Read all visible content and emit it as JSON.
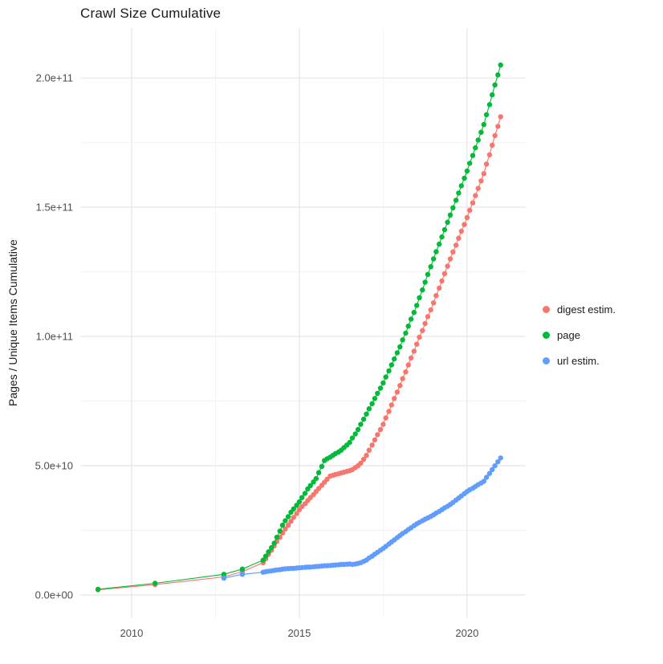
{
  "page": {
    "background": "#FFFFFF"
  },
  "chart_data": {
    "type": "line",
    "style": "line-with-points",
    "title": "Crawl Size Cumulative",
    "xlabel": "",
    "ylabel": "Pages / Unique Items Cumulative",
    "x_ticks": [
      2010,
      2015,
      2020
    ],
    "x_tick_labels": [
      "2010",
      "2015",
      "2020"
    ],
    "y_ticks": [
      0,
      50000000000.0,
      100000000000.0,
      150000000000.0,
      200000000000.0
    ],
    "y_tick_labels": [
      "0.0e+00",
      "5.0e+10",
      "1.0e+11",
      "1.5e+11",
      "2.0e+11"
    ],
    "x_minor": [
      2012.5,
      2017.5
    ],
    "y_minor": [
      25000000000.0,
      75000000000.0,
      125000000000.0,
      175000000000.0
    ],
    "x_range": [
      2008.47,
      2021.75
    ],
    "y_range": [
      -9000000000.0,
      219300000000.0
    ],
    "grid": true,
    "grid_color": "#E3E3E3",
    "minor_grid_color": "#F1F1F1",
    "axis_text_color": "#4D4D4D",
    "background": "#FFFFFF",
    "legend_position": "right",
    "point_y_unit": 1000000000.0,
    "point_y_unit_label": "point y-values are in billions (1e9)",
    "series": [
      {
        "name": "digest estim.",
        "color": "#F8766D",
        "points": [
          [
            2009.0,
            2.0
          ],
          [
            2010.7,
            4.0
          ],
          [
            2012.75,
            7.0
          ],
          [
            2013.3,
            9.0
          ],
          [
            2013.92,
            12.5
          ],
          [
            2014.0,
            14.0
          ],
          [
            2014.08,
            15.7
          ],
          [
            2014.17,
            17.3
          ],
          [
            2014.25,
            19.0
          ],
          [
            2014.33,
            20.7
          ],
          [
            2014.42,
            22.3
          ],
          [
            2014.5,
            24.0
          ],
          [
            2014.58,
            25.5
          ],
          [
            2014.67,
            27.0
          ],
          [
            2014.75,
            28.5
          ],
          [
            2014.83,
            30.0
          ],
          [
            2014.92,
            31.5
          ],
          [
            2015.0,
            33.0
          ],
          [
            2015.08,
            34.2
          ],
          [
            2015.17,
            35.3
          ],
          [
            2015.25,
            36.5
          ],
          [
            2015.33,
            37.7
          ],
          [
            2015.42,
            38.8
          ],
          [
            2015.5,
            40.0
          ],
          [
            2015.58,
            41.2
          ],
          [
            2015.67,
            42.4
          ],
          [
            2015.75,
            43.6
          ],
          [
            2015.83,
            44.8
          ],
          [
            2015.92,
            46.0
          ],
          [
            2016.0,
            46.3
          ],
          [
            2016.08,
            46.6
          ],
          [
            2016.17,
            46.9
          ],
          [
            2016.25,
            47.2
          ],
          [
            2016.33,
            47.5
          ],
          [
            2016.42,
            47.8
          ],
          [
            2016.5,
            48.1
          ],
          [
            2016.58,
            48.5
          ],
          [
            2016.67,
            49.3
          ],
          [
            2016.75,
            50.0
          ],
          [
            2016.83,
            51.0
          ],
          [
            2016.92,
            52.5
          ],
          [
            2017.0,
            54.0
          ],
          [
            2017.08,
            56.0
          ],
          [
            2017.17,
            58.0
          ],
          [
            2017.25,
            60.0
          ],
          [
            2017.33,
            62.0
          ],
          [
            2017.42,
            64.0
          ],
          [
            2017.5,
            66.0
          ],
          [
            2017.58,
            68.5
          ],
          [
            2017.67,
            71.0
          ],
          [
            2017.75,
            73.5
          ],
          [
            2017.83,
            76.0
          ],
          [
            2017.92,
            78.5
          ],
          [
            2018.0,
            81.0
          ],
          [
            2018.08,
            83.7
          ],
          [
            2018.17,
            86.3
          ],
          [
            2018.25,
            89.0
          ],
          [
            2018.33,
            91.7
          ],
          [
            2018.42,
            94.3
          ],
          [
            2018.5,
            97.0
          ],
          [
            2018.58,
            99.7
          ],
          [
            2018.67,
            102.3
          ],
          [
            2018.75,
            105.0
          ],
          [
            2018.83,
            107.7
          ],
          [
            2018.92,
            110.3
          ],
          [
            2019.0,
            113.0
          ],
          [
            2019.08,
            115.8
          ],
          [
            2019.17,
            118.7
          ],
          [
            2019.25,
            121.5
          ],
          [
            2019.33,
            124.3
          ],
          [
            2019.42,
            127.2
          ],
          [
            2019.5,
            130.0
          ],
          [
            2019.58,
            132.7
          ],
          [
            2019.67,
            135.3
          ],
          [
            2019.75,
            138.0
          ],
          [
            2019.83,
            140.7
          ],
          [
            2019.92,
            143.3
          ],
          [
            2020.0,
            146.0
          ],
          [
            2020.08,
            148.8
          ],
          [
            2020.17,
            151.7
          ],
          [
            2020.25,
            154.5
          ],
          [
            2020.33,
            157.3
          ],
          [
            2020.42,
            160.2
          ],
          [
            2020.5,
            163.0
          ],
          [
            2020.58,
            166.7
          ],
          [
            2020.67,
            170.3
          ],
          [
            2020.75,
            174.0
          ],
          [
            2020.83,
            177.7
          ],
          [
            2020.92,
            181.3
          ],
          [
            2021.0,
            185.0
          ]
        ]
      },
      {
        "name": "page",
        "color": "#00BA38",
        "points": [
          [
            2009.0,
            2.2
          ],
          [
            2010.7,
            4.5
          ],
          [
            2012.75,
            8.0
          ],
          [
            2013.3,
            10.0
          ],
          [
            2013.92,
            13.5
          ],
          [
            2014.0,
            15.0
          ],
          [
            2014.08,
            16.7
          ],
          [
            2014.17,
            18.3
          ],
          [
            2014.25,
            20.0
          ],
          [
            2014.33,
            22.3
          ],
          [
            2014.42,
            24.7
          ],
          [
            2014.5,
            27.0
          ],
          [
            2014.58,
            28.7
          ],
          [
            2014.67,
            30.3
          ],
          [
            2014.75,
            32.0
          ],
          [
            2014.83,
            33.3
          ],
          [
            2014.92,
            34.7
          ],
          [
            2015.0,
            36.0
          ],
          [
            2015.08,
            37.7
          ],
          [
            2015.17,
            39.3
          ],
          [
            2015.25,
            41.0
          ],
          [
            2015.33,
            42.3
          ],
          [
            2015.42,
            43.7
          ],
          [
            2015.5,
            45.0
          ],
          [
            2015.58,
            47.3
          ],
          [
            2015.67,
            49.7
          ],
          [
            2015.75,
            52.0
          ],
          [
            2015.83,
            52.7
          ],
          [
            2015.92,
            53.3
          ],
          [
            2016.0,
            54.0
          ],
          [
            2016.08,
            54.7
          ],
          [
            2016.17,
            55.3
          ],
          [
            2016.25,
            56.0
          ],
          [
            2016.33,
            57.0
          ],
          [
            2016.42,
            58.0
          ],
          [
            2016.5,
            59.0
          ],
          [
            2016.58,
            60.7
          ],
          [
            2016.67,
            62.3
          ],
          [
            2016.75,
            64.0
          ],
          [
            2016.83,
            66.0
          ],
          [
            2016.92,
            68.0
          ],
          [
            2017.0,
            70.0
          ],
          [
            2017.08,
            72.0
          ],
          [
            2017.17,
            74.0
          ],
          [
            2017.25,
            76.0
          ],
          [
            2017.33,
            78.0
          ],
          [
            2017.42,
            80.0
          ],
          [
            2017.5,
            82.0
          ],
          [
            2017.58,
            84.3
          ],
          [
            2017.67,
            86.7
          ],
          [
            2017.75,
            89.0
          ],
          [
            2017.83,
            91.3
          ],
          [
            2017.92,
            93.7
          ],
          [
            2018.0,
            96.0
          ],
          [
            2018.08,
            98.7
          ],
          [
            2018.17,
            101.3
          ],
          [
            2018.25,
            104.0
          ],
          [
            2018.33,
            106.7
          ],
          [
            2018.42,
            109.3
          ],
          [
            2018.5,
            112.0
          ],
          [
            2018.58,
            115.0
          ],
          [
            2018.67,
            118.0
          ],
          [
            2018.75,
            121.0
          ],
          [
            2018.83,
            124.0
          ],
          [
            2018.92,
            127.0
          ],
          [
            2019.0,
            130.0
          ],
          [
            2019.08,
            132.8
          ],
          [
            2019.17,
            135.7
          ],
          [
            2019.25,
            138.5
          ],
          [
            2019.33,
            141.3
          ],
          [
            2019.42,
            144.2
          ],
          [
            2019.5,
            147.0
          ],
          [
            2019.58,
            149.8
          ],
          [
            2019.67,
            152.7
          ],
          [
            2019.75,
            155.5
          ],
          [
            2019.83,
            158.3
          ],
          [
            2019.92,
            161.2
          ],
          [
            2020.0,
            164.0
          ],
          [
            2020.08,
            167.0
          ],
          [
            2020.17,
            170.0
          ],
          [
            2020.25,
            173.0
          ],
          [
            2020.33,
            176.0
          ],
          [
            2020.42,
            179.0
          ],
          [
            2020.5,
            182.0
          ],
          [
            2020.58,
            185.8
          ],
          [
            2020.67,
            189.7
          ],
          [
            2020.75,
            193.5
          ],
          [
            2020.83,
            197.3
          ],
          [
            2020.92,
            201.2
          ],
          [
            2021.0,
            205.0
          ]
        ]
      },
      {
        "name": "url estim.",
        "color": "#619CFF",
        "points": [
          [
            2012.75,
            6.5
          ],
          [
            2013.3,
            8.0
          ],
          [
            2013.92,
            8.8
          ],
          [
            2014.0,
            9.0
          ],
          [
            2014.08,
            9.2
          ],
          [
            2014.17,
            9.3
          ],
          [
            2014.25,
            9.5
          ],
          [
            2014.33,
            9.7
          ],
          [
            2014.42,
            9.8
          ],
          [
            2014.5,
            10.0
          ],
          [
            2014.58,
            10.1
          ],
          [
            2014.67,
            10.2
          ],
          [
            2014.75,
            10.3
          ],
          [
            2014.83,
            10.3
          ],
          [
            2014.92,
            10.4
          ],
          [
            2015.0,
            10.5
          ],
          [
            2015.08,
            10.6
          ],
          [
            2015.17,
            10.7
          ],
          [
            2015.25,
            10.8
          ],
          [
            2015.33,
            10.8
          ],
          [
            2015.42,
            10.9
          ],
          [
            2015.5,
            11.0
          ],
          [
            2015.58,
            11.1
          ],
          [
            2015.67,
            11.2
          ],
          [
            2015.75,
            11.3
          ],
          [
            2015.83,
            11.3
          ],
          [
            2015.92,
            11.4
          ],
          [
            2016.0,
            11.5
          ],
          [
            2016.08,
            11.6
          ],
          [
            2016.17,
            11.7
          ],
          [
            2016.25,
            11.8
          ],
          [
            2016.33,
            11.8
          ],
          [
            2016.42,
            11.9
          ],
          [
            2016.5,
            12.0
          ],
          [
            2016.58,
            11.8
          ],
          [
            2016.67,
            12.0
          ],
          [
            2016.75,
            12.2
          ],
          [
            2016.83,
            12.5
          ],
          [
            2016.92,
            13.0
          ],
          [
            2017.0,
            13.5
          ],
          [
            2017.08,
            14.3
          ],
          [
            2017.17,
            15.0
          ],
          [
            2017.25,
            15.8
          ],
          [
            2017.33,
            16.5
          ],
          [
            2017.42,
            17.3
          ],
          [
            2017.5,
            18.0
          ],
          [
            2017.58,
            18.8
          ],
          [
            2017.67,
            19.7
          ],
          [
            2017.75,
            20.5
          ],
          [
            2017.83,
            21.3
          ],
          [
            2017.92,
            22.2
          ],
          [
            2018.0,
            23.0
          ],
          [
            2018.08,
            23.8
          ],
          [
            2018.17,
            24.5
          ],
          [
            2018.25,
            25.3
          ],
          [
            2018.33,
            26.0
          ],
          [
            2018.42,
            26.8
          ],
          [
            2018.5,
            27.5
          ],
          [
            2018.58,
            28.1
          ],
          [
            2018.67,
            28.7
          ],
          [
            2018.75,
            29.3
          ],
          [
            2018.83,
            29.8
          ],
          [
            2018.92,
            30.4
          ],
          [
            2019.0,
            31.0
          ],
          [
            2019.08,
            31.7
          ],
          [
            2019.17,
            32.3
          ],
          [
            2019.25,
            33.0
          ],
          [
            2019.33,
            33.7
          ],
          [
            2019.42,
            34.3
          ],
          [
            2019.5,
            35.0
          ],
          [
            2019.58,
            35.8
          ],
          [
            2019.67,
            36.7
          ],
          [
            2019.75,
            37.5
          ],
          [
            2019.83,
            38.3
          ],
          [
            2019.92,
            39.2
          ],
          [
            2020.0,
            40.0
          ],
          [
            2020.08,
            40.7
          ],
          [
            2020.17,
            41.3
          ],
          [
            2020.25,
            42.0
          ],
          [
            2020.33,
            42.7
          ],
          [
            2020.42,
            43.3
          ],
          [
            2020.5,
            44.0
          ],
          [
            2020.58,
            45.5
          ],
          [
            2020.67,
            47.0
          ],
          [
            2020.75,
            48.5
          ],
          [
            2020.83,
            50.0
          ],
          [
            2020.92,
            51.5
          ],
          [
            2021.0,
            53.0
          ]
        ]
      }
    ]
  }
}
